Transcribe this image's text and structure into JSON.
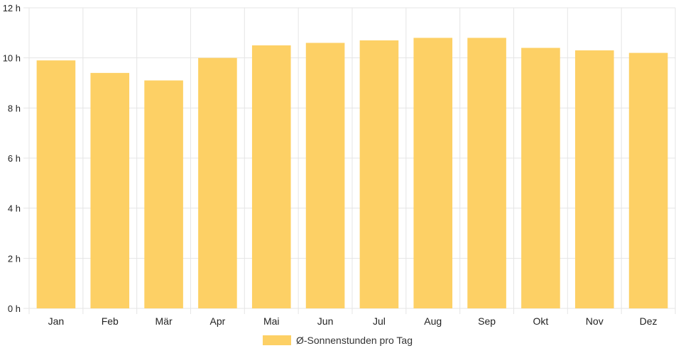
{
  "chart_data": {
    "type": "bar",
    "categories": [
      "Jan",
      "Feb",
      "Mär",
      "Apr",
      "Mai",
      "Jun",
      "Jul",
      "Aug",
      "Sep",
      "Okt",
      "Nov",
      "Dez"
    ],
    "series": [
      {
        "name": "Ø-Sonnenstunden pro Tag",
        "values": [
          9.9,
          9.4,
          9.1,
          10.0,
          10.5,
          10.6,
          10.7,
          10.8,
          10.8,
          10.4,
          10.3,
          10.2
        ],
        "color": "#fdd065"
      }
    ],
    "ylim": [
      0,
      12
    ],
    "yticks": [
      0,
      2,
      4,
      6,
      8,
      10,
      12
    ],
    "ytick_labels": [
      "0 h",
      "2 h",
      "4 h",
      "6 h",
      "8 h",
      "10 h",
      "12 h"
    ],
    "grid": true,
    "legend_position": "bottom"
  }
}
